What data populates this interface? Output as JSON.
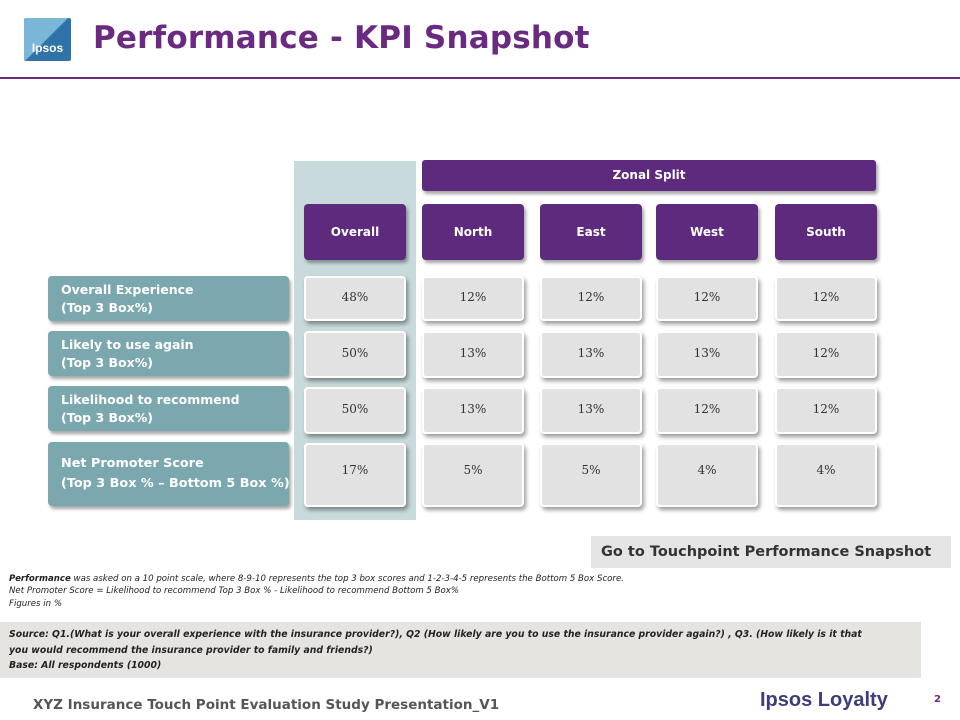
{
  "header": {
    "logo_text": "Ipsos",
    "title": "Performance - KPI Snapshot"
  },
  "table": {
    "zonal_label": "Zonal Split",
    "columns": [
      "Overall",
      "North",
      "East",
      "West",
      "South"
    ],
    "rows": [
      {
        "label_line1": "Overall Experience",
        "label_line2": "(Top 3 Box%)",
        "values": [
          "48%",
          "12%",
          "12%",
          "12%",
          "12%"
        ]
      },
      {
        "label_line1": "Likely to use again",
        "label_line2": "(Top 3 Box%)",
        "values": [
          "50%",
          "13%",
          "13%",
          "13%",
          "12%"
        ]
      },
      {
        "label_line1": "Likelihood to recommend",
        "label_line2": "(Top 3 Box%)",
        "values": [
          "50%",
          "13%",
          "13%",
          "12%",
          "12%"
        ]
      },
      {
        "label_line1": "Net Promoter Score",
        "label_line2": "(Top 3 Box % – Bottom 5 Box %)",
        "values": [
          "17%",
          "5%",
          "5%",
          "4%",
          "4%"
        ]
      }
    ]
  },
  "link": {
    "label": "Go to Touchpoint Performance Snapshot"
  },
  "notes": {
    "line1_bold": "Performance",
    "line1_rest": " was asked on a 10 point scale, where 8-9-10 represents the top 3 box scores and 1-2-3-4-5 represents the Bottom 5 Box Score.",
    "line2": "Net Promoter Score = Likelihood to recommend Top 3 Box % - Likelihood to recommend Bottom 5 Box%",
    "line3": "Figures in %"
  },
  "source": {
    "line1": "Source: Q1.(What is your overall experience with the insurance provider?), Q2 (How likely are you to use the insurance provider again?) , Q3. (How likely is it that",
    "line2": "you would recommend the insurance provider to family and friends?)",
    "line3": "Base: All respondents (1000)"
  },
  "footer": {
    "text": "XYZ Insurance Touch Point Evaluation Study Presentation_V1",
    "brand": "Ipsos Loyalty",
    "page": "2"
  }
}
